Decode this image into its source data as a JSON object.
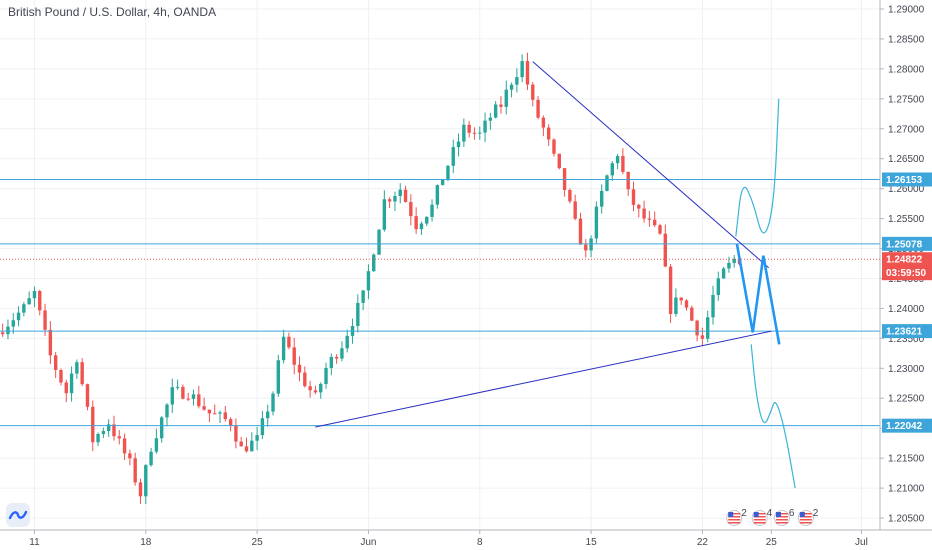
{
  "header": {
    "title": "British Pound / U.S. Dollar, 4h, OANDA"
  },
  "colors": {
    "up": "#26a69a",
    "down": "#ef5350",
    "level": "#3da5d9",
    "trend": "#2a2fc0",
    "forecast": "#2196f3",
    "price": "#ef5350",
    "grid": "#eef0f4"
  },
  "chart_data": {
    "type": "candlestick",
    "symbol": "British Pound / U.S. Dollar, 4h, OANDA",
    "ylim": [
      1.203,
      1.2915
    ],
    "y_ticks": [
      "1.29000",
      "1.28500",
      "1.28000",
      "1.27500",
      "1.27000",
      "1.26500",
      "1.26000",
      "1.25500",
      "1.25000",
      "1.24500",
      "1.24000",
      "1.23500",
      "1.23000",
      "1.22500",
      "1.22000",
      "1.21500",
      "1.21000",
      "1.20500"
    ],
    "x_ticks": [
      {
        "label": "11",
        "bar": 6
      },
      {
        "label": "18",
        "bar": 27
      },
      {
        "label": "25",
        "bar": 48
      },
      {
        "label": "Jun",
        "bar": 69
      },
      {
        "label": "8",
        "bar": 90
      },
      {
        "label": "15",
        "bar": 111
      },
      {
        "label": "22",
        "bar": 132
      },
      {
        "label": "25",
        "bar": 145
      },
      {
        "label": "Jul",
        "bar": 162
      }
    ],
    "bar_count": 166,
    "price_points": [
      [
        0,
        1.236
      ],
      [
        5,
        1.24
      ],
      [
        7,
        1.2425
      ],
      [
        10,
        1.232
      ],
      [
        13,
        1.226
      ],
      [
        15,
        1.232
      ],
      [
        18,
        1.218
      ],
      [
        21,
        1.221
      ],
      [
        25,
        1.214
      ],
      [
        27,
        1.209
      ],
      [
        29,
        1.217
      ],
      [
        33,
        1.226
      ],
      [
        36,
        1.226
      ],
      [
        40,
        1.2225
      ],
      [
        44,
        1.221
      ],
      [
        46,
        1.2165
      ],
      [
        49,
        1.218
      ],
      [
        52,
        1.226
      ],
      [
        54,
        1.235
      ],
      [
        57,
        1.229
      ],
      [
        60,
        1.225
      ],
      [
        62,
        1.23
      ],
      [
        65,
        1.234
      ],
      [
        67,
        1.238
      ],
      [
        69,
        1.242
      ],
      [
        71,
        1.25
      ],
      [
        73,
        1.258
      ],
      [
        76,
        1.26
      ],
      [
        79,
        1.254
      ],
      [
        82,
        1.257
      ],
      [
        84,
        1.262
      ],
      [
        86,
        1.266
      ],
      [
        88,
        1.27
      ],
      [
        91,
        1.269
      ],
      [
        93,
        1.272
      ],
      [
        95,
        1.274
      ],
      [
        97,
        1.278
      ],
      [
        99,
        1.281
      ],
      [
        101,
        1.274
      ],
      [
        103,
        1.27
      ],
      [
        105,
        1.265
      ],
      [
        107,
        1.26
      ],
      [
        109,
        1.254
      ],
      [
        111,
        1.249
      ],
      [
        113,
        1.256
      ],
      [
        115,
        1.262
      ],
      [
        117,
        1.266
      ],
      [
        119,
        1.259
      ],
      [
        121,
        1.256
      ],
      [
        123,
        1.254
      ],
      [
        125,
        1.252
      ],
      [
        127,
        1.24
      ],
      [
        129,
        1.242
      ],
      [
        131,
        1.238
      ],
      [
        133,
        1.235
      ],
      [
        135,
        1.242
      ],
      [
        137,
        1.246
      ],
      [
        139,
        1.2482
      ]
    ],
    "levels": [
      1.26153,
      1.25078,
      1.23621,
      1.22042
    ],
    "level_labels": [
      "1.26153",
      "1.25078",
      "1.23621",
      "1.22042"
    ],
    "current_price": 1.24822,
    "current_price_label": "1.24822",
    "countdown": "03:59:50",
    "trendlines": [
      {
        "from": [
          100,
          1.2812
        ],
        "to": [
          144.5,
          1.2468
        ]
      },
      {
        "from": [
          59,
          1.2202
        ],
        "to": [
          145,
          1.2362
        ]
      }
    ],
    "forecast_zigzag": [
      [
        138.5,
        1.2508
      ],
      [
        141.5,
        1.236
      ],
      [
        143.5,
        1.2488
      ],
      [
        146.5,
        1.234
      ]
    ],
    "forecast_curve": [
      [
        138.3,
        1.252
      ],
      [
        139.5,
        1.2615
      ],
      [
        141.5,
        1.258
      ],
      [
        143.5,
        1.251
      ],
      [
        145.5,
        1.257
      ],
      [
        146.4,
        1.275
      ],
      "break",
      [
        141.2,
        1.234
      ],
      [
        142.2,
        1.225
      ],
      [
        143.6,
        1.22
      ],
      [
        145.0,
        1.223
      ],
      [
        145.8,
        1.225
      ],
      [
        147.5,
        1.22
      ],
      [
        149.5,
        1.21
      ]
    ],
    "events": [
      {
        "bar": 138.0,
        "count": "2"
      },
      {
        "bar": 142.8,
        "count": "4"
      },
      {
        "bar": 147.0,
        "count": "6"
      },
      {
        "bar": 151.5,
        "count": "2"
      }
    ]
  }
}
